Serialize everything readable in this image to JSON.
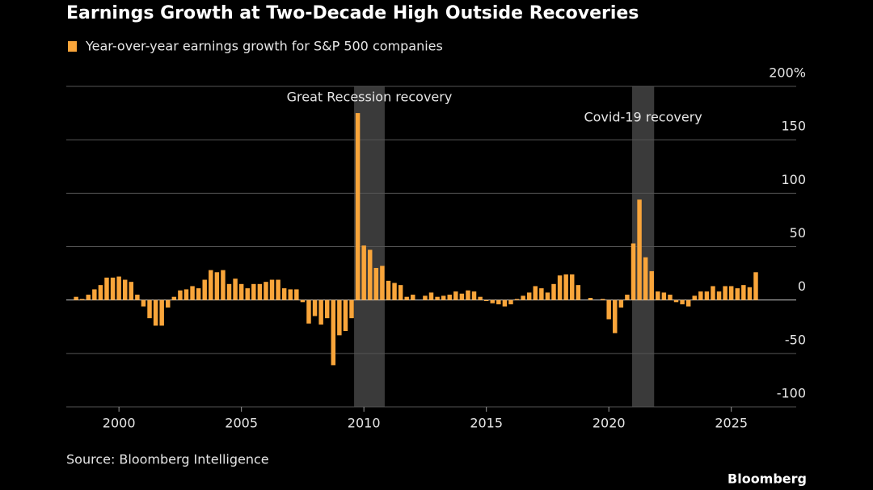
{
  "chart_data": {
    "type": "bar",
    "title": "Earnings Growth at Two-Decade High Outside Recoveries",
    "source": "Source: Bloomberg Intelligence",
    "brand": "Bloomberg",
    "x": [
      1998.25,
      1998.5,
      1998.75,
      1999,
      1999.25,
      1999.5,
      1999.75,
      2000,
      2000.25,
      2000.5,
      2000.75,
      2001,
      2001.25,
      2001.5,
      2001.75,
      2002,
      2002.25,
      2002.5,
      2002.75,
      2003,
      2003.25,
      2003.5,
      2003.75,
      2004,
      2004.25,
      2004.5,
      2004.75,
      2005,
      2005.25,
      2005.5,
      2005.75,
      2006,
      2006.25,
      2006.5,
      2006.75,
      2007,
      2007.25,
      2007.5,
      2007.75,
      2008,
      2008.25,
      2008.5,
      2008.75,
      2009,
      2009.25,
      2009.5,
      2009.75,
      2010,
      2010.25,
      2010.5,
      2010.75,
      2011,
      2011.25,
      2011.5,
      2011.75,
      2012,
      2012.25,
      2012.5,
      2012.75,
      2013,
      2013.25,
      2013.5,
      2013.75,
      2014,
      2014.25,
      2014.5,
      2014.75,
      2015,
      2015.25,
      2015.5,
      2015.75,
      2016,
      2016.25,
      2016.5,
      2016.75,
      2017,
      2017.25,
      2017.5,
      2017.75,
      2018,
      2018.25,
      2018.5,
      2018.75,
      2019,
      2019.25,
      2019.5,
      2019.75,
      2020,
      2020.25,
      2020.5,
      2020.75,
      2021,
      2021.25,
      2021.5,
      2021.75,
      2022,
      2022.25,
      2022.5,
      2022.75,
      2023,
      2023.25,
      2023.5,
      2023.75,
      2024,
      2024.25,
      2024.5,
      2024.75,
      2025,
      2025.25,
      2025.5,
      2025.75,
      2026
    ],
    "series": [
      {
        "name": "Year-over-year earnings growth for S&P 500 companies",
        "color": "#f9a53a",
        "values": [
          3,
          1,
          5,
          10,
          14,
          21,
          21,
          22,
          19,
          17,
          5,
          -6,
          -17,
          -24,
          -24,
          -7,
          3,
          9,
          10,
          13,
          11,
          19,
          28,
          26,
          28,
          15,
          20,
          15,
          11,
          15,
          15,
          17,
          19,
          19,
          11,
          10,
          10,
          -2,
          -22,
          -15,
          -23,
          -17,
          -61,
          -33,
          -29,
          -17,
          175,
          51,
          47,
          30,
          32,
          18,
          16,
          14,
          3,
          5,
          0,
          4,
          7,
          3,
          4,
          5,
          8,
          6,
          9,
          8,
          3,
          -1,
          -3,
          -4,
          -6,
          -4,
          1,
          4,
          7,
          13,
          11,
          7,
          15,
          23,
          24,
          24,
          14,
          0,
          2,
          0,
          1,
          -18,
          -31,
          -7,
          5,
          53,
          94,
          40,
          27,
          8,
          7,
          5,
          -2,
          -4,
          -6,
          4,
          8,
          8,
          13,
          8,
          13,
          13,
          11,
          14,
          12,
          26
        ]
      }
    ],
    "shaded_periods": [
      {
        "label": "Great Recession recovery",
        "start": 2009.6,
        "end": 2010.85
      },
      {
        "label": "Covid-19 recovery",
        "start": 2020.95,
        "end": 2021.85
      }
    ],
    "xlim": [
      1997.85,
      2027.65
    ],
    "xticks": [
      2000,
      2005,
      2010,
      2015,
      2020,
      2025
    ],
    "ylim": [
      -100,
      200
    ],
    "yticks": [
      -100,
      -50,
      0,
      50,
      100,
      150,
      {
        "value": 200,
        "label": "200%"
      }
    ],
    "grid": true
  }
}
